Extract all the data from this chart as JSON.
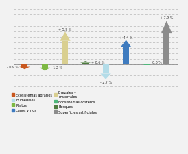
{
  "values": [
    -0.9,
    -1.2,
    5.9,
    0.6,
    -2.7,
    4.4,
    0.0,
    7.9
  ],
  "labels": [
    "- 0.9 %",
    "- 1.2 %",
    "+ 5.9 %",
    "+ 0.6 %",
    "- 2.7 %",
    "+ 4.4 %",
    "0.0 %",
    "+ 7.9 %"
  ],
  "label_side": [
    "left",
    "right",
    "center",
    "right",
    "center",
    "center",
    "right",
    "center"
  ],
  "colors": [
    "#c8571e",
    "#7db943",
    "#d9cf90",
    "#4e7c3f",
    "#b3dce8",
    "#3e7bbf",
    "#4eb87a",
    "#8c8c8c"
  ],
  "legend_items": [
    {
      "label": "Ecosistemas agrarios",
      "color": "#c8571e"
    },
    {
      "label": "Humedales",
      "color": "#b3dce8"
    },
    {
      "label": "Pastos",
      "color": "#7db943"
    },
    {
      "label": "Lagos y rios",
      "color": "#3e7bbf"
    },
    {
      "label": "Brezales y\nmatorrales",
      "color": "#d9cf90"
    },
    {
      "label": "Ecosistemas costeros",
      "color": "#4eb87a"
    },
    {
      "label": "Bosques",
      "color": "#4e7c3f"
    },
    {
      "label": "Superficies artificiales",
      "color": "#8c8c8c"
    }
  ],
  "bg_color": "#f2f2f2",
  "ylim": [
    -4.5,
    10.5
  ],
  "grid_ticks": [
    -4,
    -3,
    -2,
    -1,
    0,
    1,
    2,
    3,
    4,
    5,
    6,
    7,
    8,
    9,
    10
  ]
}
